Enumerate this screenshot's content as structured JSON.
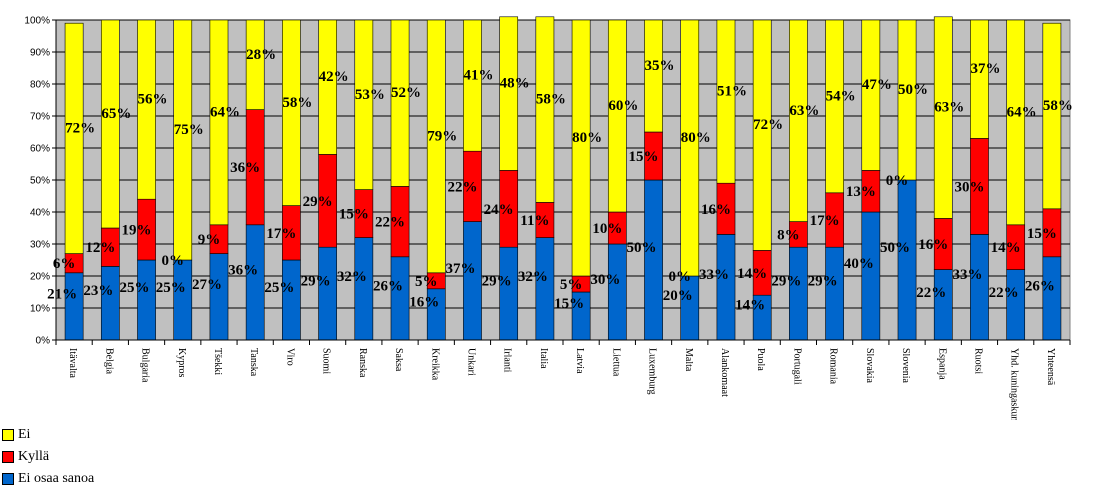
{
  "chart_data": {
    "type": "bar",
    "stacked": true,
    "percent": true,
    "ylim": [
      0,
      100
    ],
    "yticks": [
      "0%",
      "10%",
      "20%",
      "30%",
      "40%",
      "50%",
      "60%",
      "70%",
      "80%",
      "90%",
      "100%"
    ],
    "categories": [
      "Itävalta",
      "Belgia",
      "Bulgaria",
      "Kypros",
      "Tšekki",
      "Tanska",
      "Viro",
      "Suomi",
      "Ranska",
      "Saksa",
      "Kreikka",
      "Unkari",
      "Irlanti",
      "Italia",
      "Latvia",
      "Liettua",
      "Luxemburg",
      "Malta",
      "Alankomaat",
      "Puola",
      "Portugali",
      "Romania",
      "Slovakia",
      "Slovenia",
      "Espanja",
      "Ruotsi",
      "Yhd. kuningaskunta",
      "Yhteensä"
    ],
    "series": [
      {
        "name": "Ei osaa sanoa",
        "color": "#0066cc",
        "values": [
          21,
          23,
          25,
          25,
          27,
          36,
          25,
          29,
          32,
          26,
          16,
          37,
          29,
          32,
          15,
          30,
          50,
          20,
          33,
          14,
          29,
          29,
          40,
          50,
          22,
          33,
          22,
          26
        ],
        "labels": [
          "21%",
          "23%",
          "25%",
          "25%",
          "27%",
          "36%",
          "25%",
          "29%",
          "32%",
          "26%",
          "16%",
          "37%",
          "29%",
          "32%",
          "15%",
          "30%",
          "50%",
          "20%",
          "33%",
          "14%",
          "29%",
          "29%",
          "40%",
          "50%",
          "22%",
          "33%",
          "22%",
          "26%"
        ]
      },
      {
        "name": "Kyllä",
        "color": "#ff0000",
        "values": [
          6,
          12,
          19,
          0,
          9,
          36,
          17,
          29,
          15,
          22,
          5,
          22,
          24,
          11,
          5,
          10,
          15,
          0,
          16,
          14,
          8,
          17,
          13,
          0,
          16,
          30,
          14,
          15
        ],
        "labels": [
          "6%",
          "12%",
          "19%",
          "0%",
          "9%",
          "36%",
          "17%",
          "29%",
          "15%",
          "22%",
          "5%",
          "22%",
          "24%",
          "11%",
          "5%",
          "10%",
          "15%",
          "0%",
          "16%",
          "14%",
          "8%",
          "17%",
          "13%",
          "0%",
          "16%",
          "30%",
          "14%",
          "15%"
        ]
      },
      {
        "name": "Ei",
        "color": "#ffff00",
        "values": [
          72,
          65,
          56,
          75,
          64,
          28,
          58,
          42,
          53,
          52,
          79,
          41,
          48,
          58,
          80,
          60,
          35,
          80,
          51,
          72,
          63,
          54,
          47,
          50,
          63,
          37,
          64,
          58
        ],
        "labels": [
          "72%",
          "65%",
          "56%",
          "75%",
          "64%",
          "28%",
          "58%",
          "42%",
          "53%",
          "52%",
          "79%",
          "41%",
          "48%",
          "58%",
          "80%",
          "60%",
          "35%",
          "80%",
          "51%",
          "72%",
          "63%",
          "54%",
          "47%",
          "50%",
          "63%",
          "37%",
          "64%",
          "58%"
        ]
      }
    ],
    "legend": {
      "position": "bottom-left",
      "order": [
        "Ei",
        "Kyllä",
        "Ei osaa sanoa"
      ]
    },
    "grid": true,
    "plot_background": "#c0c0c0"
  }
}
